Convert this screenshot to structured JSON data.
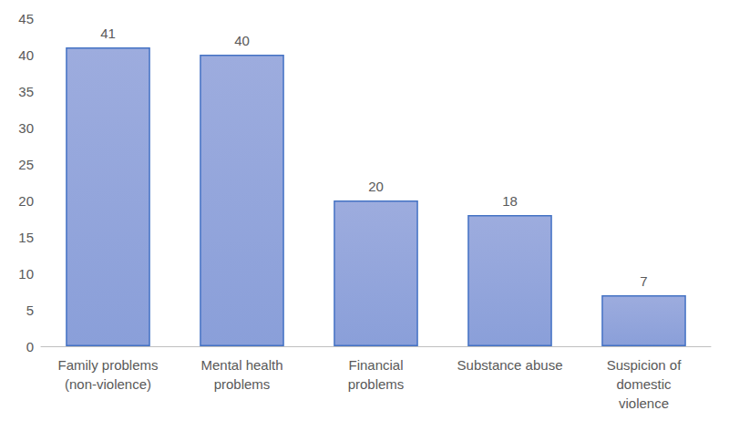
{
  "chart_data": {
    "type": "bar",
    "categories": [
      "Family problems\n(non-violence)",
      "Mental health\nproblems",
      "Financial\nproblems",
      "Substance abuse",
      "Suspicion of\ndomestic\nviolence"
    ],
    "values": [
      41,
      40,
      20,
      18,
      7
    ],
    "color": "#9dacde",
    "ylim": [
      0,
      45
    ],
    "yticks": [
      0,
      5,
      10,
      15,
      20,
      25,
      30,
      35,
      40,
      45
    ],
    "grid": false,
    "data_labels": true
  }
}
